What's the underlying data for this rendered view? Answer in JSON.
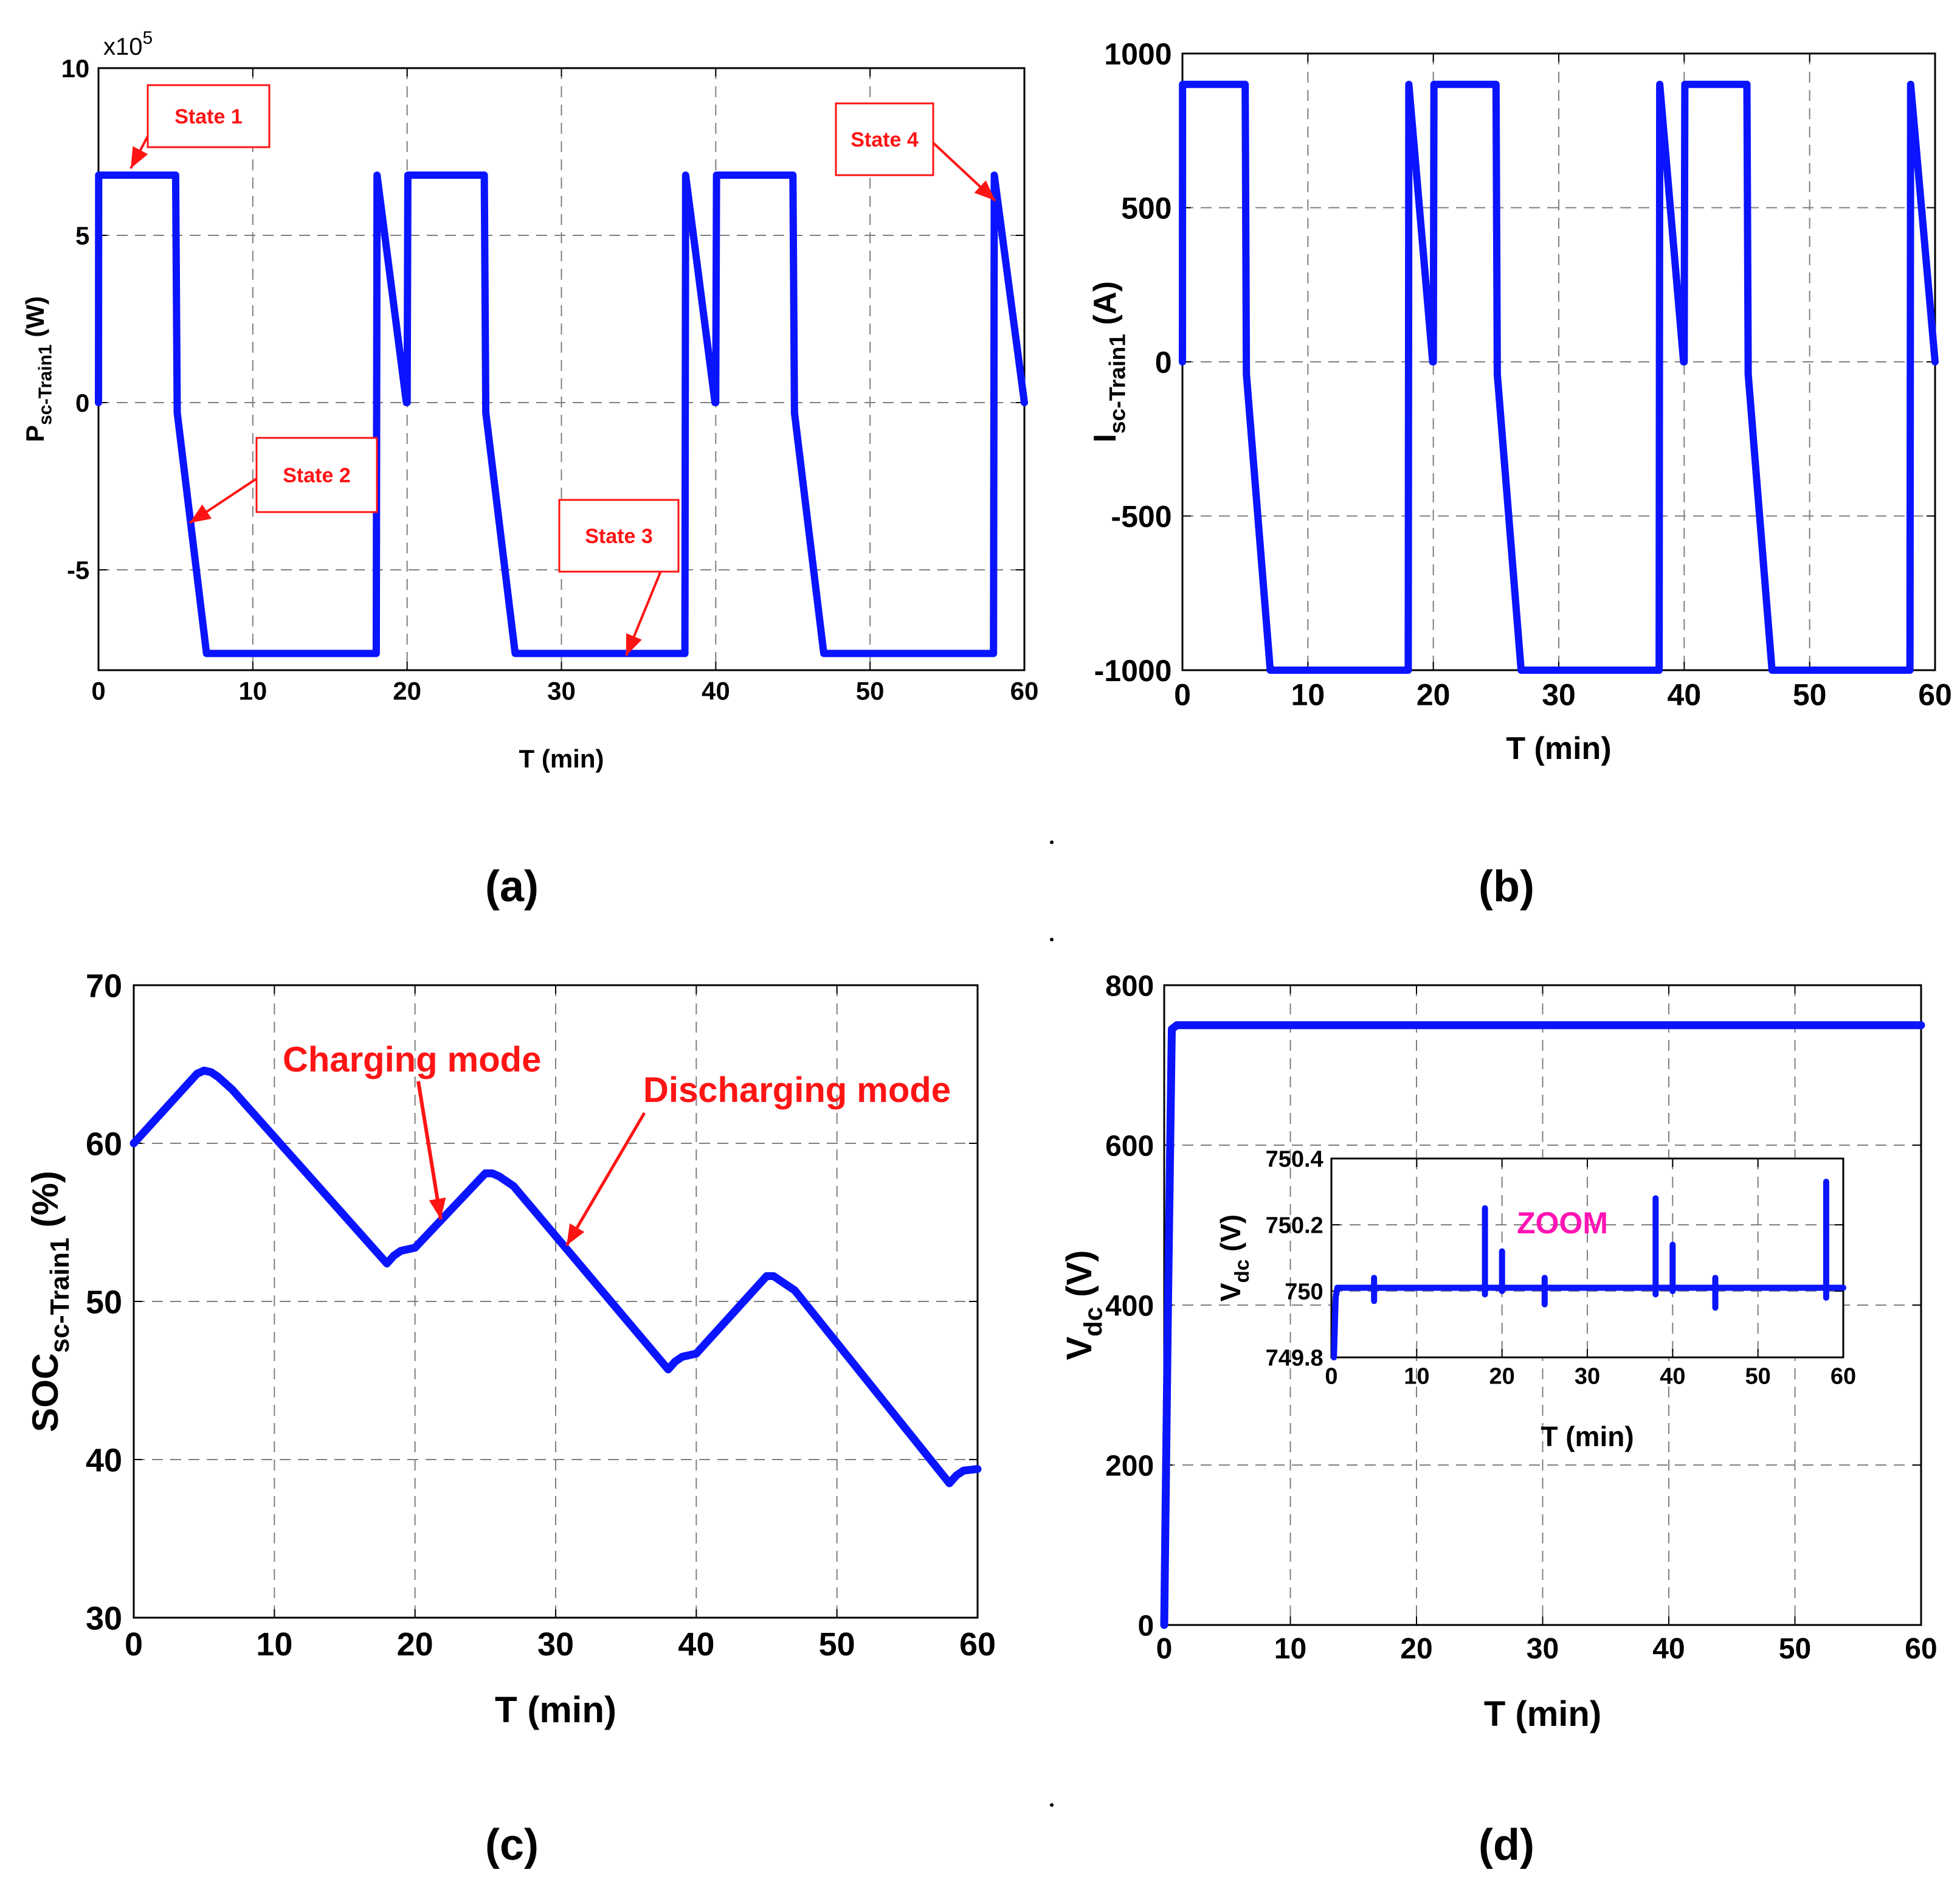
{
  "colors": {
    "series": "#0a14ff",
    "annotation": "#ff1414",
    "zoom_label": "#ff14b4",
    "grid": "#7f7f7f",
    "axes": "#000000"
  },
  "chart_data": [
    {
      "id": "a",
      "type": "line",
      "panel_label": "(a)",
      "xlabel": "T (min)",
      "ylabel_main": "P",
      "ylabel_sub": "sc-Train1",
      "ylabel_unit": "(W)",
      "exponent": "x10",
      "exponent_power": "5",
      "xlim": [
        0,
        60
      ],
      "ylim": [
        -8,
        10
      ],
      "xticks": [
        0,
        10,
        20,
        30,
        40,
        50,
        60
      ],
      "yticks": [
        -5,
        0,
        5,
        10
      ],
      "xtick_labels": [
        "0",
        "10",
        "20",
        "30",
        "40",
        "50",
        "60"
      ],
      "ytick_labels": [
        "-5",
        "0",
        "5",
        "10"
      ],
      "grid": true,
      "series": [
        {
          "name": "P_sc-Train1",
          "x": [
            0,
            0.01,
            5,
            5.1,
            7,
            18,
            18.05,
            19.95,
            20,
            20.05,
            25,
            25.1,
            27,
            38,
            38.05,
            39.95,
            40,
            40.05,
            45,
            45.1,
            47,
            58,
            58.05,
            60
          ],
          "y": [
            0,
            6.8,
            6.8,
            -0.3,
            -7.5,
            -7.5,
            6.8,
            0,
            0,
            6.8,
            6.8,
            -0.3,
            -7.5,
            -7.5,
            6.8,
            0,
            0,
            6.8,
            6.8,
            -0.3,
            -7.5,
            -7.5,
            6.8,
            0
          ]
        }
      ],
      "annotations": [
        {
          "text": "State 1",
          "x": 2,
          "y": 6.8
        },
        {
          "text": "State 2",
          "x": 6.2,
          "y": -3.5
        },
        {
          "text": "State 3",
          "x": 34.5,
          "y": -7.4
        },
        {
          "text": "State 4",
          "x": 58.3,
          "y": 6.0
        }
      ]
    },
    {
      "id": "b",
      "type": "line",
      "panel_label": "(b)",
      "xlabel": "T (min)",
      "ylabel_main": "I",
      "ylabel_sub": "sc-Train1",
      "ylabel_unit": "(A)",
      "xlim": [
        0,
        60
      ],
      "ylim": [
        -1000,
        1000
      ],
      "xticks": [
        0,
        10,
        20,
        30,
        40,
        50,
        60
      ],
      "yticks": [
        -1000,
        -500,
        0,
        500,
        1000
      ],
      "xtick_labels": [
        "0",
        "10",
        "20",
        "30",
        "40",
        "50",
        "60"
      ],
      "ytick_labels": [
        "-1000",
        "-500",
        "0",
        "500",
        "1000"
      ],
      "grid": true,
      "series": [
        {
          "name": "I_sc-Train1",
          "x": [
            0,
            0.01,
            5,
            5.1,
            7,
            18,
            18.05,
            19.95,
            20,
            20.05,
            25,
            25.1,
            27,
            38,
            38.05,
            39.95,
            40,
            40.05,
            45,
            45.1,
            47,
            58,
            58.05,
            60
          ],
          "y": [
            0,
            900,
            900,
            -40,
            -1000,
            -1000,
            900,
            0,
            0,
            900,
            900,
            -40,
            -1000,
            -1000,
            900,
            0,
            0,
            900,
            900,
            -40,
            -1000,
            -1000,
            900,
            0
          ]
        }
      ]
    },
    {
      "id": "c",
      "type": "line",
      "panel_label": "(c)",
      "xlabel": "T (min)",
      "ylabel_main": "SOC",
      "ylabel_sub": "sc-Train1",
      "ylabel_unit": "(%)",
      "xlim": [
        0,
        60
      ],
      "ylim": [
        30,
        70
      ],
      "xticks": [
        0,
        10,
        20,
        30,
        40,
        50,
        60
      ],
      "yticks": [
        30,
        40,
        50,
        60,
        70
      ],
      "xtick_labels": [
        "0",
        "10",
        "20",
        "30",
        "40",
        "50",
        "60"
      ],
      "ytick_labels": [
        "30",
        "40",
        "50",
        "60",
        "70"
      ],
      "grid": true,
      "series": [
        {
          "name": "SOC_sc-Train1",
          "x": [
            0,
            4.5,
            5,
            5.5,
            6,
            7,
            18,
            18.5,
            19,
            20,
            25,
            25.5,
            26,
            27,
            38,
            38.5,
            39,
            40,
            45,
            45.5,
            46,
            47,
            58,
            58.5,
            59,
            60
          ],
          "y": [
            60,
            64.4,
            64.6,
            64.5,
            64.2,
            63.4,
            52.4,
            52.9,
            53.2,
            53.4,
            58.1,
            58.1,
            57.9,
            57.3,
            45.7,
            46.2,
            46.5,
            46.7,
            51.6,
            51.6,
            51.3,
            50.7,
            38.5,
            39.0,
            39.3,
            39.4
          ]
        }
      ],
      "annotations": [
        {
          "text": "Charging mode",
          "x": 21.5,
          "y": 55.0
        },
        {
          "text": "Discharging mode",
          "x": 30.5,
          "y": 53.0
        }
      ]
    },
    {
      "id": "d",
      "type": "line",
      "panel_label": "(d)",
      "xlabel": "T (min)",
      "ylabel_main": "V",
      "ylabel_sub": "dc",
      "ylabel_unit": "(V)",
      "xlim": [
        0,
        60
      ],
      "ylim": [
        0,
        800
      ],
      "xticks": [
        0,
        10,
        20,
        30,
        40,
        50,
        60
      ],
      "yticks": [
        0,
        200,
        400,
        600,
        800
      ],
      "xtick_labels": [
        "0",
        "10",
        "20",
        "30",
        "40",
        "50",
        "60"
      ],
      "ytick_labels": [
        "0",
        "200",
        "400",
        "600",
        "800"
      ],
      "grid": true,
      "series": [
        {
          "name": "V_dc",
          "x": [
            0,
            0.3,
            0.6,
            1.0,
            60
          ],
          "y": [
            0,
            400,
            745,
            750,
            750
          ]
        }
      ],
      "inset": {
        "title": "ZOOM",
        "xlabel": "T (min)",
        "ylabel_main": "V",
        "ylabel_sub": "dc",
        "ylabel_unit": "(V)",
        "xlim": [
          0,
          60
        ],
        "ylim": [
          749.8,
          750.4
        ],
        "xticks": [
          0,
          10,
          20,
          30,
          40,
          50,
          60
        ],
        "yticks": [
          749.8,
          750,
          750.2,
          750.4
        ],
        "xtick_labels": [
          "0",
          "10",
          "20",
          "30",
          "40",
          "50",
          "60"
        ],
        "ytick_labels": [
          "749.8",
          "750",
          "750.2",
          "750.4"
        ],
        "grid": true,
        "series": [
          {
            "name": "V_dc (zoom)",
            "x": [
              0.3,
              0.5,
              0.7,
              1.0,
              5,
              5,
              5,
              5,
              18,
              18,
              18,
              18,
              20,
              20,
              20,
              20,
              25,
              25,
              25,
              25,
              38,
              38,
              38,
              38,
              40,
              40,
              40,
              40,
              45,
              45,
              45,
              45,
              58,
              58,
              58,
              58,
              60
            ],
            "y": [
              749.8,
              749.98,
              750.01,
              750.01,
              750.01,
              750.04,
              749.97,
              750.01,
              750.01,
              750.25,
              749.99,
              750.01,
              750.01,
              750.12,
              750.0,
              750.01,
              750.01,
              750.04,
              749.96,
              750.01,
              750.01,
              750.28,
              749.99,
              750.01,
              750.01,
              750.14,
              750.0,
              750.01,
              750.01,
              750.04,
              749.95,
              750.01,
              750.01,
              750.33,
              749.98,
              750.01,
              750.01
            ]
          }
        ]
      }
    }
  ]
}
